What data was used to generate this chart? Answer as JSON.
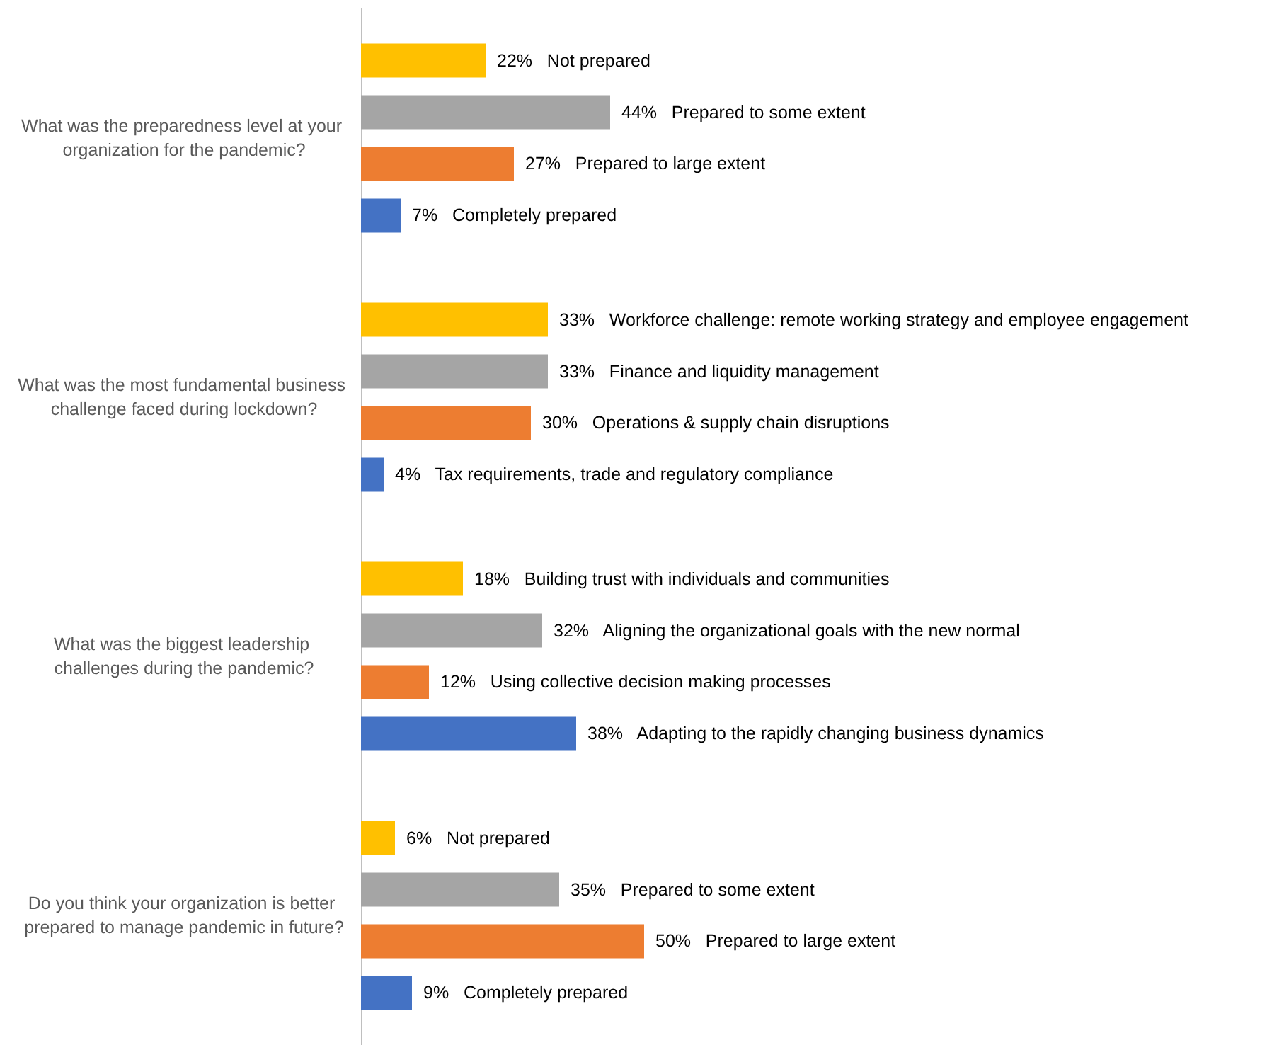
{
  "chart_data": {
    "type": "bar",
    "orientation": "horizontal",
    "categories": [
      "What was the preparedness level at your organization for the pandemic?",
      "What was the most fundamental business challenge faced during lockdown?",
      "What was the biggest leadership challenges during the pandemic?",
      "Do you think your organization is better prepared to manage pandemic in future?"
    ],
    "series": [
      {
        "color": "#ffc000",
        "values": [
          22,
          33,
          18,
          6
        ],
        "value_labels": [
          "22%   Not prepared",
          "33%   Workforce challenge: remote working strategy and employee engagement",
          "18%   Building trust with individuals and communities",
          "6%   Not prepared"
        ]
      },
      {
        "color": "#a5a5a5",
        "values": [
          44,
          33,
          32,
          35
        ],
        "value_labels": [
          "44%   Prepared to some extent",
          "33%   Finance and liquidity management",
          "32%   Aligning the organizational goals with the new normal",
          "35%   Prepared to some extent"
        ]
      },
      {
        "color": "#ed7d31",
        "values": [
          27,
          30,
          12,
          50
        ],
        "value_labels": [
          "27%   Prepared to large extent",
          "30%   Operations & supply chain disruptions",
          "12%   Using collective decision making processes",
          "50%   Prepared to large extent"
        ]
      },
      {
        "color": "#4472c4",
        "values": [
          7,
          4,
          38,
          9
        ],
        "value_labels": [
          "7%   Completely prepared",
          "4%   Tax requirements, trade and regulatory compliance",
          "38%   Adapting to the rapidly changing business dynamics",
          "9%   Completely prepared"
        ]
      }
    ],
    "grid": false,
    "tick_labels": "y"
  }
}
